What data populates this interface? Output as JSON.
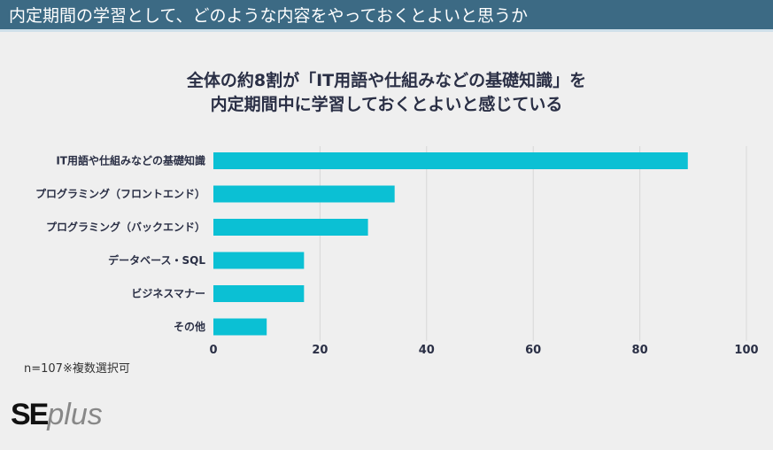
{
  "header": {
    "title": "内定期間の学習として、どのような内容をやっておくとよいと思うか"
  },
  "note": "n=107※複数選択可",
  "logo": {
    "se": "SE",
    "plus": "plus"
  },
  "colors": {
    "header": "#3c6a84",
    "bar": "#0bc0d4",
    "text": "#2a2f45"
  },
  "chart_data": {
    "type": "bar",
    "orientation": "horizontal",
    "title_lines": [
      "全体の約8割が「IT用語や仕組みなどの基礎知識」を",
      "内定期間中に学習しておくとよいと感じている"
    ],
    "categories": [
      "IT用語や仕組みなどの基礎知識",
      "プログラミング（フロントエンド）",
      "プログラミング（バックエンド）",
      "データベース・SQL",
      "ビジネスマナー",
      "その他"
    ],
    "values": [
      89,
      34,
      29,
      17,
      17,
      10
    ],
    "xlim": [
      0,
      100
    ],
    "xticks": [
      "0",
      "20",
      "40",
      "60",
      "80",
      "100"
    ],
    "grid": true,
    "legend": "none"
  }
}
